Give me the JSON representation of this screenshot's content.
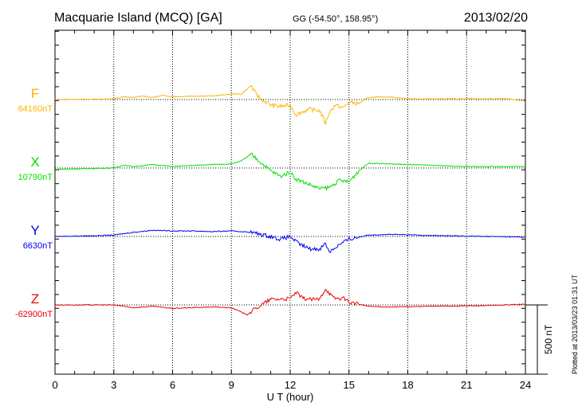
{
  "chart_data": {
    "type": "line",
    "title": "Macquarie Island (MCQ)  [GA]",
    "coords": "GG (-54.50°, 158.95°)",
    "date": "2013/02/20",
    "xlabel": "U T (hour)",
    "xlim": [
      0,
      24
    ],
    "xticks": [
      "0",
      "3",
      "6",
      "9",
      "12",
      "15",
      "18",
      "21",
      "24"
    ],
    "scale_label": "500 nT",
    "scale_nT": 500,
    "plotted_note": "Plotted at 2013/03/23 01:31  UT",
    "grid": true,
    "series": [
      {
        "name": "F",
        "baseline": "64160nT",
        "color": "#ffb300",
        "points": [
          [
            0,
            0
          ],
          [
            2,
            2
          ],
          [
            3,
            5
          ],
          [
            3.5,
            20
          ],
          [
            4,
            15
          ],
          [
            4.5,
            25
          ],
          [
            5,
            15
          ],
          [
            5.5,
            30
          ],
          [
            6,
            20
          ],
          [
            7,
            25
          ],
          [
            8,
            25
          ],
          [
            9,
            40
          ],
          [
            9.5,
            40
          ],
          [
            10,
            100
          ],
          [
            10.2,
            50
          ],
          [
            10.5,
            5
          ],
          [
            11,
            -40
          ],
          [
            11.5,
            -50
          ],
          [
            12,
            -40
          ],
          [
            12.3,
            -110
          ],
          [
            12.6,
            -90
          ],
          [
            13,
            -70
          ],
          [
            13.5,
            -80
          ],
          [
            13.8,
            -170
          ],
          [
            14,
            -90
          ],
          [
            14.3,
            -40
          ],
          [
            14.7,
            -60
          ],
          [
            15,
            -20
          ],
          [
            15.5,
            -30
          ],
          [
            16,
            15
          ],
          [
            17,
            20
          ],
          [
            18,
            5
          ],
          [
            20,
            5
          ],
          [
            22,
            5
          ],
          [
            23,
            5
          ],
          [
            24,
            -10
          ]
        ]
      },
      {
        "name": "X",
        "baseline": "10790nT",
        "color": "#00e000",
        "points": [
          [
            0,
            -10
          ],
          [
            3,
            0
          ],
          [
            3.5,
            20
          ],
          [
            4,
            10
          ],
          [
            5,
            25
          ],
          [
            6,
            10
          ],
          [
            8,
            25
          ],
          [
            9,
            30
          ],
          [
            9.5,
            50
          ],
          [
            10,
            100
          ],
          [
            10.5,
            40
          ],
          [
            11,
            -20
          ],
          [
            11.5,
            -60
          ],
          [
            12,
            -30
          ],
          [
            12.3,
            -80
          ],
          [
            13,
            -120
          ],
          [
            13.5,
            -150
          ],
          [
            14,
            -140
          ],
          [
            14.5,
            -90
          ],
          [
            15,
            -100
          ],
          [
            15.5,
            -20
          ],
          [
            16,
            35
          ],
          [
            17,
            30
          ],
          [
            18,
            25
          ],
          [
            21,
            10
          ],
          [
            24,
            10
          ]
        ]
      },
      {
        "name": "Y",
        "baseline": "6630nT",
        "color": "#0000ee",
        "points": [
          [
            0,
            0
          ],
          [
            2,
            5
          ],
          [
            3,
            10
          ],
          [
            4,
            30
          ],
          [
            5,
            45
          ],
          [
            6,
            40
          ],
          [
            7,
            40
          ],
          [
            8,
            35
          ],
          [
            9,
            40
          ],
          [
            10,
            30
          ],
          [
            11,
            0
          ],
          [
            11.5,
            -20
          ],
          [
            12,
            0
          ],
          [
            12.4,
            -50
          ],
          [
            13,
            -90
          ],
          [
            13.5,
            -90
          ],
          [
            13.8,
            -50
          ],
          [
            14,
            -110
          ],
          [
            14.5,
            -60
          ],
          [
            15,
            -20
          ],
          [
            16,
            10
          ],
          [
            17,
            15
          ],
          [
            20,
            5
          ],
          [
            22,
            0
          ],
          [
            24,
            -5
          ]
        ]
      },
      {
        "name": "Z",
        "baseline": "-62900nT",
        "color": "#ee0000",
        "points": [
          [
            0,
            0
          ],
          [
            3,
            0
          ],
          [
            4,
            -20
          ],
          [
            5,
            -10
          ],
          [
            6,
            -25
          ],
          [
            8,
            -15
          ],
          [
            9,
            -20
          ],
          [
            9.8,
            -70
          ],
          [
            10.3,
            -20
          ],
          [
            11,
            40
          ],
          [
            12,
            45
          ],
          [
            12.3,
            90
          ],
          [
            12.6,
            50
          ],
          [
            13,
            40
          ],
          [
            13.5,
            40
          ],
          [
            13.8,
            120
          ],
          [
            14.2,
            50
          ],
          [
            14.8,
            45
          ],
          [
            15,
            20
          ],
          [
            16,
            -10
          ],
          [
            17,
            -15
          ],
          [
            19,
            -10
          ],
          [
            22,
            -5
          ],
          [
            24,
            5
          ]
        ]
      }
    ]
  }
}
